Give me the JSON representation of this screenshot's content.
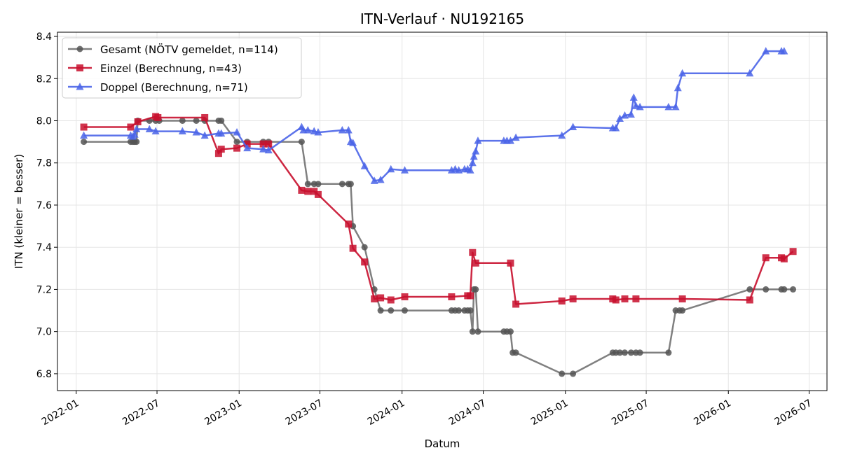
{
  "chart_data": {
    "type": "line",
    "title": "ITN-Verlauf · NU192165",
    "xlabel": "Datum",
    "ylabel": "ITN  (kleiner = besser)",
    "xlim": [
      "2021-11-20",
      "2026-08-10"
    ],
    "ylim": [
      6.72,
      8.42
    ],
    "x_ticks": [
      "2022-01",
      "2022-07",
      "2023-01",
      "2023-07",
      "2024-01",
      "2024-07",
      "2025-01",
      "2025-07",
      "2026-01",
      "2026-07"
    ],
    "y_ticks": [
      "6.8",
      "7.0",
      "7.2",
      "7.4",
      "7.6",
      "7.8",
      "8.0",
      "8.2",
      "8.4"
    ],
    "grid": true,
    "legend_position": "upper-left",
    "series": [
      {
        "name": "Gesamt (NÖTV gemeldet, n=114)",
        "color": "#555555",
        "marker": "circle",
        "points": [
          [
            "2022-01-18",
            7.9
          ],
          [
            "2022-05-03",
            7.9
          ],
          [
            "2022-05-08",
            7.9
          ],
          [
            "2022-05-12",
            7.9
          ],
          [
            "2022-05-16",
            7.9
          ],
          [
            "2022-05-19",
            8.0
          ],
          [
            "2022-06-14",
            8.0
          ],
          [
            "2022-06-28",
            8.0
          ],
          [
            "2022-07-06",
            8.0
          ],
          [
            "2022-08-27",
            8.0
          ],
          [
            "2022-09-27",
            8.0
          ],
          [
            "2022-10-16",
            8.0
          ],
          [
            "2022-11-16",
            8.0
          ],
          [
            "2022-11-22",
            8.0
          ],
          [
            "2022-12-27",
            7.9
          ],
          [
            "2023-01-19",
            7.9
          ],
          [
            "2023-02-24",
            7.9
          ],
          [
            "2023-03-08",
            7.9
          ],
          [
            "2023-05-21",
            7.9
          ],
          [
            "2023-06-04",
            7.7
          ],
          [
            "2023-06-18",
            7.7
          ],
          [
            "2023-06-27",
            7.7
          ],
          [
            "2023-08-20",
            7.7
          ],
          [
            "2023-09-03",
            7.7
          ],
          [
            "2023-09-08",
            7.7
          ],
          [
            "2023-09-13",
            7.5
          ],
          [
            "2023-10-09",
            7.4
          ],
          [
            "2023-10-31",
            7.2
          ],
          [
            "2023-11-14",
            7.1
          ],
          [
            "2023-12-07",
            7.1
          ],
          [
            "2024-01-07",
            7.1
          ],
          [
            "2024-04-21",
            7.1
          ],
          [
            "2024-04-29",
            7.1
          ],
          [
            "2024-05-07",
            7.1
          ],
          [
            "2024-05-20",
            7.1
          ],
          [
            "2024-05-27",
            7.1
          ],
          [
            "2024-06-02",
            7.1
          ],
          [
            "2024-06-07",
            7.0
          ],
          [
            "2024-06-10",
            7.2
          ],
          [
            "2024-06-14",
            7.2
          ],
          [
            "2024-06-19",
            7.0
          ],
          [
            "2024-08-16",
            7.0
          ],
          [
            "2024-08-23",
            7.0
          ],
          [
            "2024-08-31",
            7.0
          ],
          [
            "2024-09-05",
            6.9
          ],
          [
            "2024-09-12",
            6.9
          ],
          [
            "2024-12-24",
            6.8
          ],
          [
            "2025-01-18",
            6.8
          ],
          [
            "2025-04-17",
            6.9
          ],
          [
            "2025-04-24",
            6.9
          ],
          [
            "2025-05-03",
            6.9
          ],
          [
            "2025-05-14",
            6.9
          ],
          [
            "2025-05-28",
            6.9
          ],
          [
            "2025-06-08",
            6.9
          ],
          [
            "2025-06-17",
            6.9
          ],
          [
            "2025-08-20",
            6.9
          ],
          [
            "2025-09-05",
            7.1
          ],
          [
            "2025-09-14",
            7.1
          ],
          [
            "2025-09-20",
            7.1
          ],
          [
            "2026-02-18",
            7.2
          ],
          [
            "2026-03-26",
            7.2
          ],
          [
            "2026-04-30",
            7.2
          ],
          [
            "2026-05-06",
            7.2
          ],
          [
            "2026-05-26",
            7.2
          ]
        ]
      },
      {
        "name": "Einzel (Berechnung, n=43)",
        "color": "#c8102e",
        "marker": "square",
        "points": [
          [
            "2022-01-18",
            7.97
          ],
          [
            "2022-05-03",
            7.97
          ],
          [
            "2022-05-19",
            7.995
          ],
          [
            "2022-06-28",
            8.02
          ],
          [
            "2022-07-03",
            8.015
          ],
          [
            "2022-10-16",
            8.015
          ],
          [
            "2022-11-16",
            7.845
          ],
          [
            "2022-11-22",
            7.865
          ],
          [
            "2022-12-27",
            7.87
          ],
          [
            "2023-01-19",
            7.89
          ],
          [
            "2023-02-24",
            7.89
          ],
          [
            "2023-03-08",
            7.89
          ],
          [
            "2023-05-21",
            7.67
          ],
          [
            "2023-06-04",
            7.665
          ],
          [
            "2023-06-18",
            7.665
          ],
          [
            "2023-06-27",
            7.65
          ],
          [
            "2023-09-03",
            7.51
          ],
          [
            "2023-09-13",
            7.395
          ],
          [
            "2023-10-09",
            7.33
          ],
          [
            "2023-10-31",
            7.155
          ],
          [
            "2023-11-14",
            7.16
          ],
          [
            "2023-12-07",
            7.15
          ],
          [
            "2024-01-07",
            7.165
          ],
          [
            "2024-04-21",
            7.165
          ],
          [
            "2024-05-27",
            7.17
          ],
          [
            "2024-06-02",
            7.17
          ],
          [
            "2024-06-07",
            7.375
          ],
          [
            "2024-06-14",
            7.325
          ],
          [
            "2024-08-31",
            7.325
          ],
          [
            "2024-09-12",
            7.13
          ],
          [
            "2024-12-24",
            7.145
          ],
          [
            "2025-01-18",
            7.155
          ],
          [
            "2025-04-17",
            7.155
          ],
          [
            "2025-04-24",
            7.15
          ],
          [
            "2025-05-14",
            7.155
          ],
          [
            "2025-06-08",
            7.155
          ],
          [
            "2025-09-20",
            7.155
          ],
          [
            "2026-02-18",
            7.15
          ],
          [
            "2026-03-26",
            7.35
          ],
          [
            "2026-04-30",
            7.35
          ],
          [
            "2026-05-06",
            7.345
          ],
          [
            "2026-05-26",
            7.38
          ]
        ]
      },
      {
        "name": "Doppel (Berechnung, n=71)",
        "color": "#4a64e8",
        "marker": "triangle",
        "points": [
          [
            "2022-01-18",
            7.93
          ],
          [
            "2022-05-03",
            7.93
          ],
          [
            "2022-05-08",
            7.925
          ],
          [
            "2022-05-12",
            7.935
          ],
          [
            "2022-05-16",
            7.96
          ],
          [
            "2022-06-14",
            7.96
          ],
          [
            "2022-06-28",
            7.95
          ],
          [
            "2022-08-27",
            7.95
          ],
          [
            "2022-09-27",
            7.945
          ],
          [
            "2022-10-16",
            7.93
          ],
          [
            "2022-11-16",
            7.94
          ],
          [
            "2022-11-22",
            7.94
          ],
          [
            "2022-12-27",
            7.945
          ],
          [
            "2023-01-19",
            7.87
          ],
          [
            "2023-02-24",
            7.865
          ],
          [
            "2023-03-08",
            7.86
          ],
          [
            "2023-05-21",
            7.97
          ],
          [
            "2023-05-25",
            7.955
          ],
          [
            "2023-06-04",
            7.955
          ],
          [
            "2023-06-18",
            7.95
          ],
          [
            "2023-06-27",
            7.945
          ],
          [
            "2023-08-20",
            7.955
          ],
          [
            "2023-09-03",
            7.955
          ],
          [
            "2023-09-08",
            7.9
          ],
          [
            "2023-09-13",
            7.895
          ],
          [
            "2023-10-09",
            7.785
          ],
          [
            "2023-10-31",
            7.715
          ],
          [
            "2023-11-14",
            7.72
          ],
          [
            "2023-12-07",
            7.77
          ],
          [
            "2024-01-07",
            7.765
          ],
          [
            "2024-04-21",
            7.765
          ],
          [
            "2024-04-29",
            7.77
          ],
          [
            "2024-05-07",
            7.765
          ],
          [
            "2024-05-20",
            7.77
          ],
          [
            "2024-05-27",
            7.77
          ],
          [
            "2024-06-02",
            7.765
          ],
          [
            "2024-06-07",
            7.8
          ],
          [
            "2024-06-10",
            7.83
          ],
          [
            "2024-06-14",
            7.855
          ],
          [
            "2024-06-19",
            7.905
          ],
          [
            "2024-08-16",
            7.905
          ],
          [
            "2024-08-23",
            7.905
          ],
          [
            "2024-08-31",
            7.905
          ],
          [
            "2024-09-12",
            7.92
          ],
          [
            "2024-12-24",
            7.93
          ],
          [
            "2025-01-18",
            7.97
          ],
          [
            "2025-04-17",
            7.965
          ],
          [
            "2025-04-24",
            7.965
          ],
          [
            "2025-05-03",
            8.01
          ],
          [
            "2025-05-14",
            8.025
          ],
          [
            "2025-05-28",
            8.03
          ],
          [
            "2025-06-03",
            8.11
          ],
          [
            "2025-06-08",
            8.07
          ],
          [
            "2025-06-17",
            8.065
          ],
          [
            "2025-08-20",
            8.065
          ],
          [
            "2025-09-05",
            8.065
          ],
          [
            "2025-09-10",
            8.155
          ],
          [
            "2025-09-20",
            8.225
          ],
          [
            "2026-02-18",
            8.225
          ],
          [
            "2026-03-26",
            8.33
          ],
          [
            "2026-04-30",
            8.33
          ],
          [
            "2026-05-06",
            8.33
          ]
        ]
      }
    ]
  }
}
